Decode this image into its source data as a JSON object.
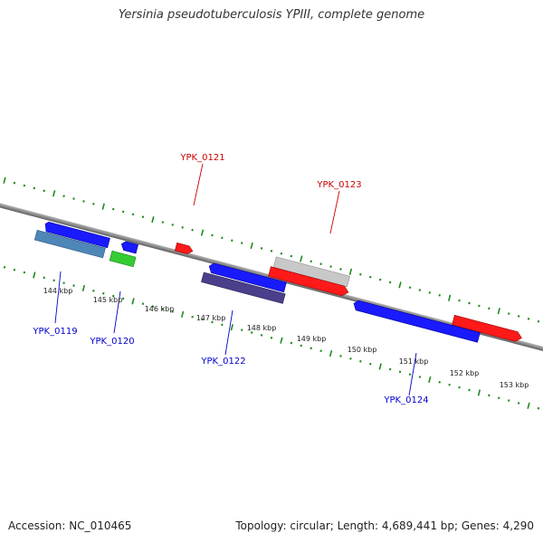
{
  "title": "Yersinia pseudotuberculosis YPIII, complete genome",
  "footer": {
    "accession": "Accession: NC_010465",
    "summary": "Topology: circular; Length: 4,689,441 bp; Genes: 4,290"
  },
  "colors": {
    "backbone": "#7a7a7a",
    "tick": "#1f8a1f",
    "label_forward": "#cc0000",
    "label_reverse": "#0000cc",
    "gene_blue": "#1a1aff",
    "gene_red": "#ff1a1a",
    "gene_green": "#33cc33",
    "gene_grey": "#c8c8c8",
    "gene_steel": "#4f86b8",
    "gene_navy": "#151570",
    "gene_slate": "#4a3f8a"
  },
  "scale_labels": [
    "144 kbp",
    "145 kbp",
    "146 kbp",
    "147 kbp",
    "148 kbp",
    "149 kbp",
    "150 kbp",
    "151 kbp",
    "152 kbp",
    "153 kbp"
  ],
  "gene_labels": [
    {
      "text": "YPK_0121",
      "color": "#cc0000"
    },
    {
      "text": "YPK_0123",
      "color": "#cc0000"
    },
    {
      "text": "YPK_0119",
      "color": "#0000cc"
    },
    {
      "text": "YPK_0120",
      "color": "#0000cc"
    },
    {
      "text": "YPK_0122",
      "color": "#0000cc"
    },
    {
      "text": "YPK_0124",
      "color": "#0000cc"
    }
  ]
}
